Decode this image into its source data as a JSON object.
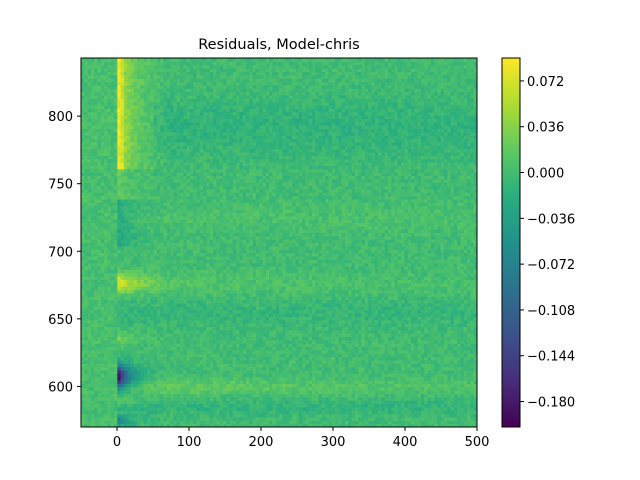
{
  "chart_data": {
    "type": "heatmap",
    "title": "Residuals, Model-chris",
    "xlabel": "",
    "ylabel": "",
    "xlim": [
      -50,
      500
    ],
    "ylim": [
      570,
      843
    ],
    "x_ticks": [
      0,
      100,
      200,
      300,
      400,
      500
    ],
    "x_tick_labels": [
      "0",
      "100",
      "200",
      "300",
      "400",
      "500"
    ],
    "y_ticks": [
      600,
      650,
      700,
      750,
      800
    ],
    "y_tick_labels": [
      "600",
      "650",
      "700",
      "750",
      "800"
    ],
    "colormap": "viridis",
    "color_range": [
      -0.2,
      0.09
    ],
    "colorbar_ticks": [
      0.072,
      0.036,
      0.0,
      -0.036,
      -0.072,
      -0.108,
      -0.144,
      -0.18
    ],
    "colorbar_tick_labels": [
      "0.072",
      "0.036",
      "0.000",
      "−0.036",
      "−0.072",
      "−0.108",
      "−0.144",
      "−0.180"
    ],
    "grid": false,
    "features": [
      {
        "x": 10,
        "y": 800,
        "value": 0.07
      },
      {
        "x": 10,
        "y": 677,
        "value": 0.055
      },
      {
        "x": 10,
        "y": 635,
        "value": 0.035
      },
      {
        "x": 10,
        "y": 607,
        "value": -0.19
      },
      {
        "x": 10,
        "y": 575,
        "value": -0.07
      },
      {
        "x": 250,
        "y": 600,
        "value": 0.02
      },
      {
        "x": 250,
        "y": 675,
        "value": 0.015
      }
    ]
  }
}
